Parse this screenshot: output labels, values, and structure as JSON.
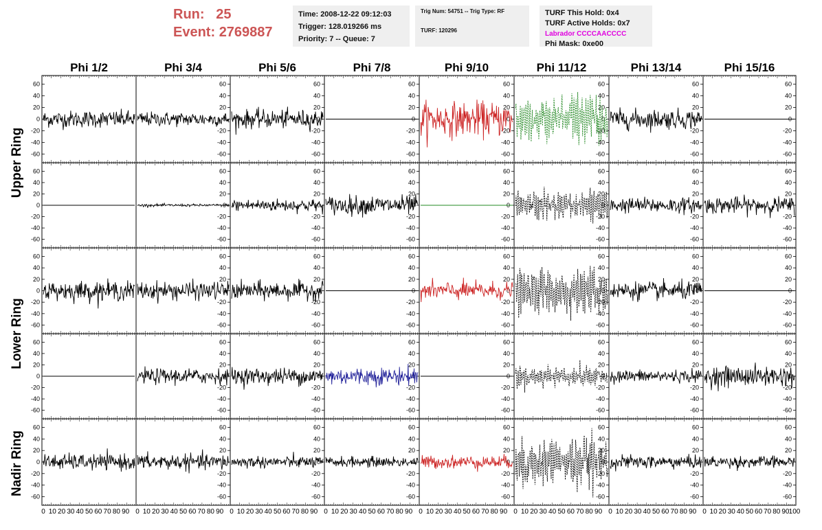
{
  "header": {
    "run_label": "Run:",
    "run_value": "25",
    "event_label": "Event:",
    "event_value": "2769887",
    "time": "Time: 2008-12-22 09:12:03",
    "trigger": "Trigger: 128.019266 ms",
    "priority": "Priority: 7 -- Queue: 7",
    "trig_num": "Trig Num: 54751 -- Trig Type: RF",
    "turf": "TURF: 120296",
    "turf_this_hold": "TURF This Hold: 0x4",
    "turf_active_holds": "TURF Active Holds: 0x7",
    "labrador": "Labrador CCCCAACCCC",
    "phi_mask": "Phi Mask: 0xe00"
  },
  "chart_data": {
    "type": "line",
    "columns": [
      "Phi 1/2",
      "Phi 3/4",
      "Phi 5/6",
      "Phi 7/8",
      "Phi 9/10",
      "Phi 11/12",
      "Phi 13/14",
      "Phi 15/16"
    ],
    "ring_labels": [
      "Upper Ring",
      "Lower Ring",
      "Nadir Ring"
    ],
    "ylim": [
      -75,
      75
    ],
    "xlim": [
      0,
      100
    ],
    "y_ticks": [
      -60,
      -40,
      -20,
      0,
      20,
      40,
      60
    ],
    "x_ticks": [
      0,
      10,
      20,
      30,
      40,
      50,
      60,
      70,
      80,
      90,
      100
    ],
    "colors": {
      "black": "#000000",
      "red": "#cc2222",
      "green": "#228822",
      "blue": "#22229a"
    },
    "panels": [
      [
        {
          "color": "black",
          "amp": 13,
          "style": "solid"
        },
        {
          "color": "black",
          "amp": 11,
          "style": "solid"
        },
        {
          "color": "black",
          "amp": 14,
          "style": "solid"
        },
        {
          "color": "black",
          "amp": 0,
          "style": "solid"
        },
        {
          "color": "red",
          "amp": 26,
          "style": "solid"
        },
        {
          "color": "green",
          "amp": 26,
          "style": "dashed"
        },
        {
          "color": "black",
          "amp": 15,
          "style": "solid"
        },
        {
          "color": "black",
          "amp": 0,
          "style": "solid"
        }
      ],
      [
        {
          "color": "black",
          "amp": 0,
          "style": "solid"
        },
        {
          "color": "black",
          "amp": 2,
          "style": "solid"
        },
        {
          "color": "black",
          "amp": 10,
          "style": "solid"
        },
        {
          "color": "black",
          "amp": 15,
          "style": "solid"
        },
        {
          "color": "green",
          "amp": 0,
          "style": "solid"
        },
        {
          "color": "black",
          "amp": 15,
          "style": "dashed"
        },
        {
          "color": "black",
          "amp": 12,
          "style": "solid"
        },
        {
          "color": "black",
          "amp": 13,
          "style": "solid"
        }
      ],
      [
        {
          "color": "black",
          "amp": 15,
          "style": "solid"
        },
        {
          "color": "black",
          "amp": 14,
          "style": "solid"
        },
        {
          "color": "black",
          "amp": 14,
          "style": "solid"
        },
        {
          "color": "black",
          "amp": 0,
          "style": "solid"
        },
        {
          "color": "red",
          "amp": 14,
          "style": "solid"
        },
        {
          "color": "black",
          "amp": 22,
          "style": "dashed"
        },
        {
          "color": "black",
          "amp": 14,
          "style": "solid"
        },
        {
          "color": "black",
          "amp": 0,
          "style": "solid"
        }
      ],
      [
        {
          "color": "black",
          "amp": 0,
          "style": "solid"
        },
        {
          "color": "black",
          "amp": 12,
          "style": "solid"
        },
        {
          "color": "black",
          "amp": 13,
          "style": "solid"
        },
        {
          "color": "blue",
          "amp": 14,
          "style": "solid"
        },
        {
          "color": "black",
          "amp": 0,
          "style": "solid"
        },
        {
          "color": "black",
          "amp": 11,
          "style": "dashed"
        },
        {
          "color": "black",
          "amp": 10,
          "style": "solid"
        },
        {
          "color": "black",
          "amp": 16,
          "style": "solid"
        }
      ],
      [
        {
          "color": "black",
          "amp": 12,
          "style": "solid"
        },
        {
          "color": "black",
          "amp": 12,
          "style": "solid"
        },
        {
          "color": "black",
          "amp": 9,
          "style": "solid"
        },
        {
          "color": "black",
          "amp": 8,
          "style": "solid"
        },
        {
          "color": "red",
          "amp": 10,
          "style": "solid"
        },
        {
          "color": "black",
          "amp": 26,
          "style": "dashed"
        },
        {
          "color": "black",
          "amp": 10,
          "style": "solid"
        },
        {
          "color": "black",
          "amp": 9,
          "style": "solid"
        }
      ]
    ]
  }
}
